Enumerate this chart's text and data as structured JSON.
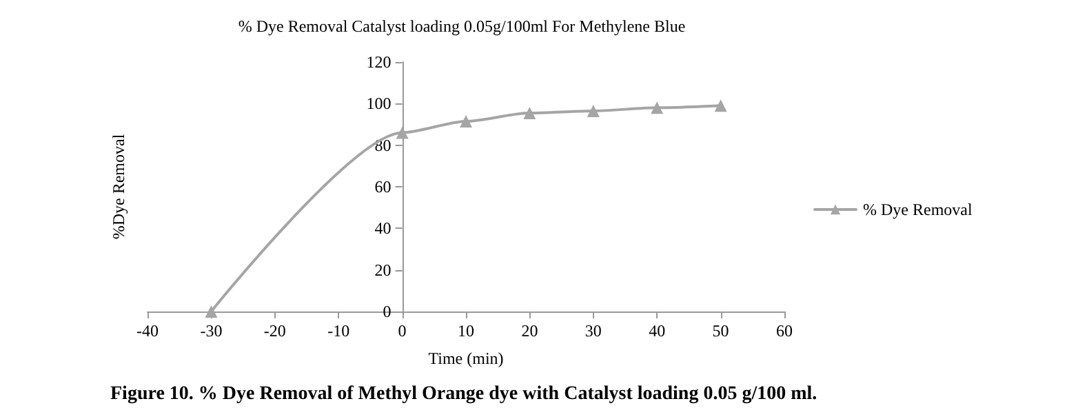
{
  "chart_data": {
    "type": "line",
    "title": "% Dye Removal Catalyst loading 0.05g/100ml For Methylene Blue",
    "xlabel": "Time (min)",
    "ylabel": "%Dye Removal",
    "annotations": [
      "Figure 10. % Dye Removal of Methyl Orange dye with Catalyst loading 0.05 g/100 ml."
    ],
    "x": [
      -30,
      0,
      10,
      20,
      30,
      40,
      50
    ],
    "series": [
      {
        "name": "% Dye Removal",
        "color": "#a5a5a5",
        "values": [
          0,
          86,
          91.5,
          95.5,
          96.5,
          98,
          99
        ]
      }
    ],
    "xlim": [
      -40,
      60
    ],
    "xticks": [
      -40,
      -30,
      -20,
      -10,
      0,
      10,
      20,
      30,
      40,
      50,
      60
    ],
    "ylim": [
      0,
      120
    ],
    "yticks": [
      0,
      20,
      40,
      60,
      80,
      100,
      120
    ],
    "grid": false,
    "legend": "right",
    "marker": "triangle",
    "line_style": "solid"
  }
}
